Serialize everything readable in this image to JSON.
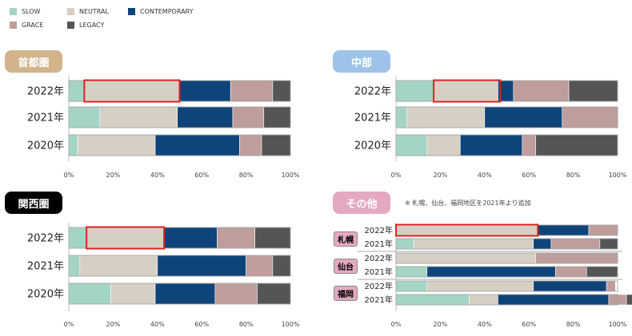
{
  "legend": [
    {
      "key": "slow",
      "label": "SLOW",
      "color": "#a3d4c5"
    },
    {
      "key": "neutral",
      "label": "NEUTRAL",
      "color": "#d6cfc4"
    },
    {
      "key": "contemporary",
      "label": "CONTEMPORARY",
      "color": "#0e4479"
    },
    {
      "key": "grace",
      "label": "GRACE",
      "color": "#bf9d9a"
    },
    {
      "key": "legacy",
      "label": "LEGACY",
      "color": "#555555"
    }
  ],
  "panels": {
    "shutoken": {
      "title": "首都圏",
      "badge_color": "#d2b38a",
      "badge_text_color": "#ffffff"
    },
    "chubu": {
      "title": "中部",
      "badge_color": "#9dc3e8",
      "badge_text_color": "#ffffff"
    },
    "kansai": {
      "title": "関西圏",
      "badge_color": "#000000",
      "badge_text_color": "#ffffff"
    },
    "sonota": {
      "title": "その他",
      "badge_color": "#e4a9c1",
      "badge_text_color": "#ffffff",
      "note": "※ 札幌、仙台、福岡地区を2021年より追加",
      "regions": [
        {
          "label": "札幌"
        },
        {
          "label": "仙台"
        },
        {
          "label": "福岡"
        }
      ]
    }
  },
  "chart_data": [
    {
      "type": "bar",
      "orientation": "horizontal",
      "stacked": true,
      "title": "首都圏",
      "categories": [
        "2022年",
        "2021年",
        "2020年"
      ],
      "series": [
        {
          "name": "SLOW",
          "values": [
            7,
            14,
            4
          ]
        },
        {
          "name": "NEUTRAL",
          "values": [
            43,
            35,
            35
          ]
        },
        {
          "name": "CONTEMPORARY",
          "values": [
            23,
            25,
            38
          ]
        },
        {
          "name": "GRACE",
          "values": [
            19,
            14,
            10
          ]
        },
        {
          "name": "LEGACY",
          "values": [
            8,
            12,
            13
          ]
        }
      ],
      "highlight": [
        {
          "category": "2022年",
          "from": 7,
          "to": 50
        }
      ],
      "xlim": [
        0,
        100
      ],
      "xticks": [
        "0%",
        "20%",
        "40%",
        "60%",
        "80%",
        "100%"
      ]
    },
    {
      "type": "bar",
      "orientation": "horizontal",
      "stacked": true,
      "title": "中部",
      "categories": [
        "2022年",
        "2021年",
        "2020年"
      ],
      "series": [
        {
          "name": "SLOW",
          "values": [
            17,
            5,
            14
          ]
        },
        {
          "name": "NEUTRAL",
          "values": [
            29,
            35,
            15
          ]
        },
        {
          "name": "CONTEMPORARY",
          "values": [
            7,
            35,
            28
          ]
        },
        {
          "name": "GRACE",
          "values": [
            25,
            25,
            6
          ]
        },
        {
          "name": "LEGACY",
          "values": [
            22,
            0,
            37
          ]
        }
      ],
      "highlight": [
        {
          "category": "2022年",
          "from": 17,
          "to": 47
        }
      ],
      "xlim": [
        0,
        100
      ],
      "xticks": [
        "0%",
        "20%",
        "40%",
        "60%",
        "80%",
        "100%"
      ]
    },
    {
      "type": "bar",
      "orientation": "horizontal",
      "stacked": true,
      "title": "関西圏",
      "categories": [
        "2022年",
        "2021年",
        "2020年"
      ],
      "series": [
        {
          "name": "SLOW",
          "values": [
            8,
            5,
            19
          ]
        },
        {
          "name": "NEUTRAL",
          "values": [
            35,
            35,
            20
          ]
        },
        {
          "name": "CONTEMPORARY",
          "values": [
            24,
            40,
            27
          ]
        },
        {
          "name": "GRACE",
          "values": [
            17,
            12,
            19
          ]
        },
        {
          "name": "LEGACY",
          "values": [
            16,
            8,
            15
          ]
        }
      ],
      "highlight": [
        {
          "category": "2022年",
          "from": 8,
          "to": 43
        }
      ],
      "xlim": [
        0,
        100
      ],
      "xticks": [
        "0%",
        "20%",
        "40%",
        "60%",
        "80%",
        "100%"
      ]
    },
    {
      "type": "bar",
      "orientation": "horizontal",
      "stacked": true,
      "title": "その他",
      "categories": [
        "2022年",
        "2021年",
        "2022年",
        "2021年",
        "2022年",
        "2021年"
      ],
      "groups": [
        {
          "label": "札幌",
          "categories": [
            0,
            1
          ]
        },
        {
          "label": "仙台",
          "categories": [
            2,
            3
          ]
        },
        {
          "label": "福岡",
          "categories": [
            4,
            5
          ]
        }
      ],
      "series": [
        {
          "name": "SLOW",
          "values": [
            0,
            8,
            0,
            14,
            14,
            33
          ]
        },
        {
          "name": "NEUTRAL",
          "values": [
            64,
            54,
            63,
            0,
            48,
            0
          ]
        },
        {
          "name": "CONTEMPORARY",
          "values": [
            23,
            8,
            0,
            58,
            33,
            50
          ]
        },
        {
          "name": "GRACE",
          "values": [
            13,
            22,
            37,
            14,
            4,
            8
          ]
        },
        {
          "name": "LEGACY",
          "values": [
            0,
            8,
            0,
            14,
            0,
            8
          ]
        }
      ],
      "extra_neutral_2021_fukuoka": 13,
      "highlight": [
        {
          "category_index": 0,
          "from": 0,
          "to": 64
        }
      ],
      "xlim": [
        0,
        100
      ],
      "xticks": [
        "0%",
        "20%",
        "40%",
        "60%",
        "80%",
        "100%"
      ]
    }
  ]
}
